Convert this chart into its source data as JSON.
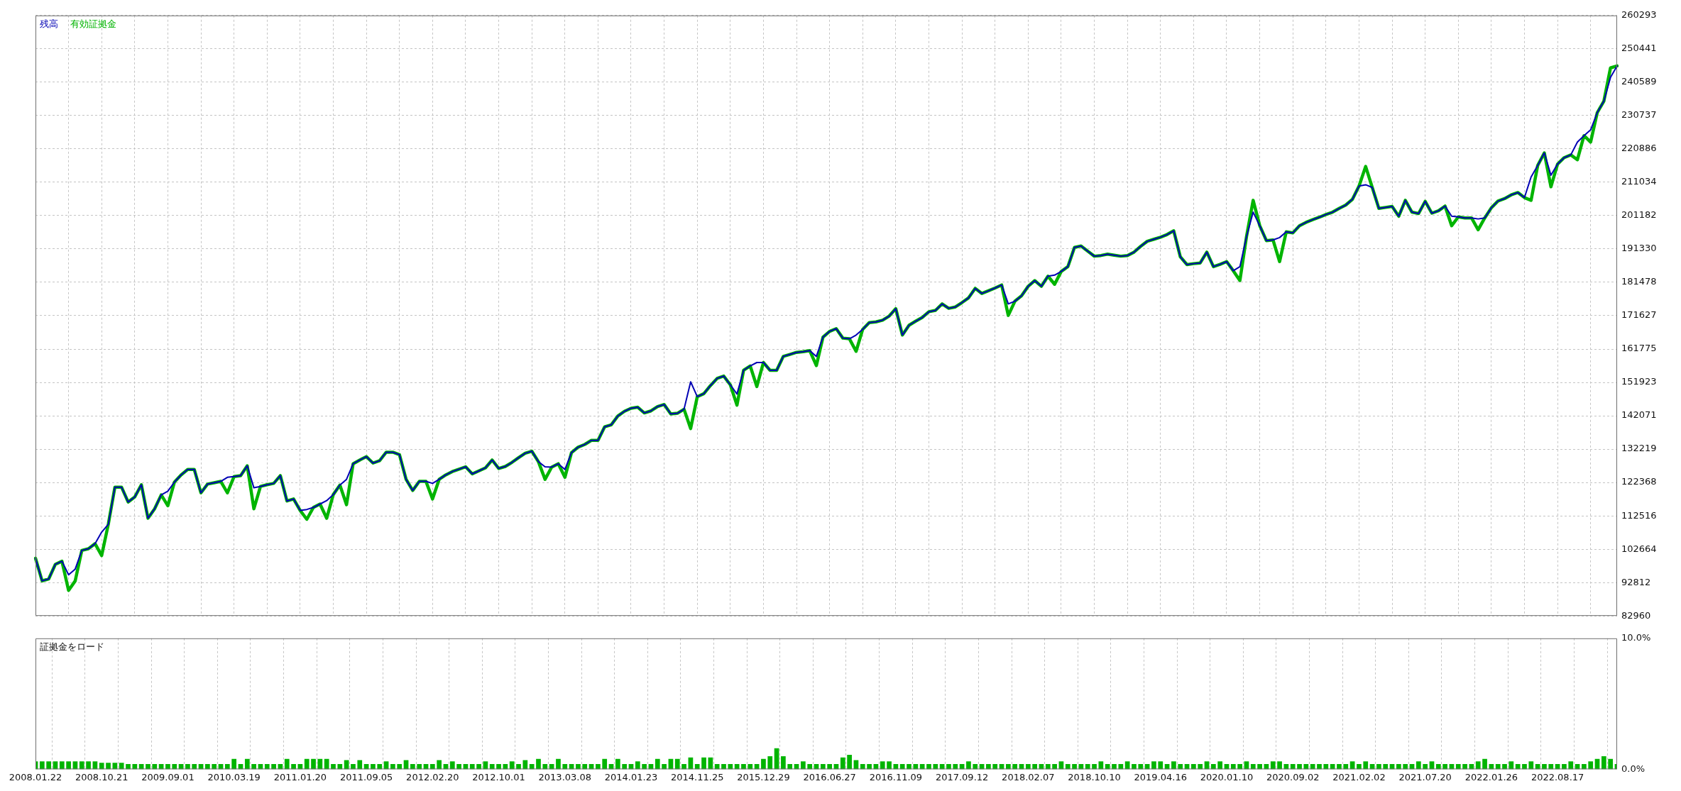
{
  "chart_data": [
    {
      "type": "line",
      "legend": "top left",
      "grid": true,
      "tick_labels": "y",
      "categories": [
        "2008.01.22",
        null,
        null,
        null,
        null,
        null,
        null,
        null,
        null,
        null,
        "2008.10.21",
        null,
        null,
        null,
        null,
        null,
        null,
        null,
        null,
        null,
        "2009.09.01",
        null,
        null,
        null,
        null,
        null,
        null,
        null,
        null,
        null,
        "2010.03.19",
        null,
        null,
        null,
        null,
        null,
        null,
        null,
        null,
        null,
        "2011.01.20",
        null,
        null,
        null,
        null,
        null,
        null,
        null,
        null,
        null,
        "2011.09.05",
        null,
        null,
        null,
        null,
        null,
        null,
        null,
        null,
        null,
        "2012.02.20",
        null,
        null,
        null,
        null,
        null,
        null,
        null,
        null,
        null,
        "2012.10.01",
        null,
        null,
        null,
        null,
        null,
        null,
        null,
        null,
        null,
        "2013.03.08",
        null,
        null,
        null,
        null,
        null,
        null,
        null,
        null,
        null,
        "2014.01.23",
        null,
        null,
        null,
        null,
        null,
        null,
        null,
        null,
        null,
        "2014.11.25",
        null,
        null,
        null,
        null,
        null,
        null,
        null,
        null,
        null,
        "2015.12.29",
        null,
        null,
        null,
        null,
        null,
        null,
        null,
        null,
        null,
        "2016.06.27",
        null,
        null,
        null,
        null,
        null,
        null,
        null,
        null,
        null,
        "2016.11.09",
        null,
        null,
        null,
        null,
        null,
        null,
        null,
        null,
        null,
        "2017.09.12",
        null,
        null,
        null,
        null,
        null,
        null,
        null,
        null,
        null,
        "2018.02.07",
        null,
        null,
        null,
        null,
        null,
        null,
        null,
        null,
        null,
        "2018.10.10",
        null,
        null,
        null,
        null,
        null,
        null,
        null,
        null,
        null,
        "2019.04.16",
        null,
        null,
        null,
        null,
        null,
        null,
        null,
        null,
        null,
        "2020.01.10",
        null,
        null,
        null,
        null,
        null,
        null,
        null,
        null,
        null,
        "2020.09.02",
        null,
        null,
        null,
        null,
        null,
        null,
        null,
        null,
        null,
        "2021.02.02",
        null,
        null,
        null,
        null,
        null,
        null,
        null,
        null,
        null,
        "2021.07.20",
        null,
        null,
        null,
        null,
        null,
        null,
        null,
        null,
        null,
        "2022.01.26",
        null,
        null,
        null,
        null,
        null,
        null,
        null,
        null,
        null,
        "2022.08.17",
        null,
        null,
        null,
        null,
        null,
        null,
        null,
        null,
        null
      ],
      "ylim": [
        82960,
        260293
      ],
      "yticks": [
        82960,
        92812,
        102664,
        112516,
        122368,
        132219,
        142071,
        151923,
        161775,
        171627,
        181478,
        191330,
        201182,
        211034,
        220886,
        230737,
        240589,
        250441,
        260293
      ],
      "series": [
        {
          "name": "残高",
          "color": "#0000b4",
          "values": [
            100000,
            93300,
            93900,
            98200,
            99100,
            95100,
            96800,
            102300,
            102800,
            104300,
            107700,
            110000,
            121000,
            121000,
            116600,
            118100,
            121700,
            111800,
            114600,
            118700,
            119800,
            122500,
            124600,
            126200,
            126200,
            119300,
            121900,
            122300,
            122700,
            123900,
            124100,
            124400,
            127300,
            120800,
            121200,
            121700,
            122100,
            124400,
            116900,
            117500,
            114100,
            114400,
            115000,
            116000,
            117000,
            118800,
            121600,
            123300,
            127900,
            129000,
            130000,
            128100,
            128800,
            131300,
            131300,
            130600,
            123300,
            120000,
            122700,
            122700,
            122100,
            123300,
            124600,
            125600,
            126300,
            127000,
            124900,
            125800,
            126700,
            129000,
            126500,
            127100,
            128300,
            129700,
            131000,
            131600,
            128500,
            127000,
            126900,
            127900,
            126200,
            131200,
            132800,
            133600,
            134800,
            134800,
            138800,
            139400,
            142000,
            143400,
            144300,
            144600,
            142900,
            143500,
            144800,
            145400,
            142600,
            142800,
            144000,
            152100,
            147700,
            148600,
            151000,
            153100,
            153800,
            151200,
            148500,
            155500,
            156800,
            157800,
            157800,
            155500,
            155500,
            159600,
            160200,
            160800,
            161000,
            161300,
            159600,
            165300,
            167000,
            167800,
            165000,
            164800,
            165900,
            167600,
            169600,
            169800,
            170300,
            171500,
            173700,
            165900,
            168800,
            170000,
            171100,
            172800,
            173200,
            175100,
            173800,
            174200,
            175500,
            176900,
            179700,
            178200,
            179000,
            179800,
            180700,
            175100,
            175900,
            177500,
            180300,
            182000,
            180300,
            183300,
            183600,
            184700,
            186100,
            191800,
            192200,
            190700,
            189200,
            189400,
            189800,
            189500,
            189200,
            189400,
            190400,
            192100,
            193600,
            194200,
            194800,
            195600,
            196700,
            189000,
            186700,
            187000,
            187200,
            190400,
            186100,
            186800,
            187600,
            184900,
            186100,
            195000,
            202200,
            198200,
            193800,
            194000,
            194700,
            196400,
            196100,
            198200,
            199200,
            200000,
            200700,
            201500,
            202200,
            203300,
            204300,
            206000,
            209900,
            210300,
            209500,
            203300,
            203600,
            203900,
            201000,
            205700,
            202200,
            201800,
            205400,
            201900,
            202600,
            204000,
            201000,
            200800,
            200500,
            200500,
            200200,
            200500,
            203500,
            205500,
            206200,
            207300,
            208000,
            206500,
            212600,
            216000,
            219700,
            213100,
            216400,
            218300,
            219100,
            222900,
            224800,
            226500,
            231600,
            235000,
            242000,
            245400
          ]
        },
        {
          "name": "有効証拠金",
          "color": "#00b400",
          "values": [
            100000,
            93300,
            93900,
            98200,
            99100,
            90500,
            93300,
            102300,
            102800,
            104300,
            100800,
            110000,
            121000,
            121000,
            116600,
            118100,
            121700,
            111800,
            114600,
            118700,
            115500,
            122500,
            124600,
            126200,
            126200,
            119300,
            121900,
            122300,
            122700,
            119300,
            124100,
            124400,
            127300,
            114600,
            121200,
            121700,
            122100,
            124400,
            116900,
            117500,
            114100,
            111500,
            115000,
            116000,
            111800,
            118800,
            121600,
            115800,
            127900,
            129000,
            130000,
            128100,
            128800,
            131300,
            131300,
            130600,
            123300,
            120000,
            122700,
            122700,
            117500,
            123300,
            124600,
            125600,
            126300,
            127000,
            124900,
            125800,
            126700,
            129000,
            126500,
            127100,
            128300,
            129700,
            131000,
            131600,
            128500,
            123300,
            126900,
            127900,
            123900,
            131200,
            132800,
            133600,
            134800,
            134800,
            138800,
            139400,
            142000,
            143400,
            144300,
            144600,
            142900,
            143500,
            144800,
            145400,
            142600,
            142800,
            144000,
            138300,
            147700,
            148600,
            151000,
            153100,
            153800,
            151200,
            145200,
            155500,
            156800,
            150700,
            157800,
            155500,
            155500,
            159600,
            160200,
            160800,
            161000,
            161300,
            156900,
            165300,
            167000,
            167800,
            165000,
            164800,
            161100,
            167600,
            169600,
            169800,
            170300,
            171500,
            173700,
            165900,
            168800,
            170000,
            171100,
            172800,
            173200,
            175100,
            173800,
            174200,
            175500,
            176900,
            179700,
            178200,
            179000,
            179800,
            180700,
            171700,
            175900,
            177500,
            180300,
            182000,
            180300,
            183300,
            180900,
            184700,
            186100,
            191800,
            192200,
            190700,
            189200,
            189400,
            189800,
            189500,
            189200,
            189400,
            190400,
            192100,
            193600,
            194200,
            194800,
            195600,
            196700,
            189000,
            186700,
            187000,
            187200,
            190400,
            186100,
            186800,
            187600,
            184900,
            182000,
            195000,
            205700,
            198200,
            193800,
            194000,
            187600,
            196400,
            196100,
            198200,
            199200,
            200000,
            200700,
            201500,
            202200,
            203300,
            204300,
            206000,
            209900,
            215700,
            209500,
            203300,
            203600,
            203900,
            201000,
            205700,
            202200,
            201800,
            205400,
            201900,
            202600,
            204000,
            198200,
            200800,
            200500,
            200500,
            197000,
            200500,
            203500,
            205500,
            206200,
            207300,
            208000,
            206500,
            205700,
            216000,
            219700,
            209700,
            216400,
            218300,
            219100,
            217700,
            224800,
            222900,
            231600,
            235000,
            244800,
            245400
          ]
        }
      ]
    },
    {
      "type": "bar",
      "title": "証拠金をロード",
      "grid": "x",
      "categories": [
        "2008.01.22",
        null,
        null,
        null,
        null,
        null,
        null,
        null,
        null,
        null,
        "2008.10.21",
        null,
        null,
        null,
        null,
        null,
        null,
        null,
        null,
        null,
        "2009.09.01",
        null,
        null,
        null,
        null,
        null,
        null,
        null,
        null,
        null,
        "2010.03.19",
        null,
        null,
        null,
        null,
        null,
        null,
        null,
        null,
        null,
        "2011.01.20",
        null,
        null,
        null,
        null,
        null,
        null,
        null,
        null,
        null,
        "2011.09.05",
        null,
        null,
        null,
        null,
        null,
        null,
        null,
        null,
        null,
        "2012.02.20",
        null,
        null,
        null,
        null,
        null,
        null,
        null,
        null,
        null,
        "2012.10.01",
        null,
        null,
        null,
        null,
        null,
        null,
        null,
        null,
        null,
        "2013.03.08",
        null,
        null,
        null,
        null,
        null,
        null,
        null,
        null,
        null,
        "2014.01.23",
        null,
        null,
        null,
        null,
        null,
        null,
        null,
        null,
        null,
        "2014.11.25",
        null,
        null,
        null,
        null,
        null,
        null,
        null,
        null,
        null,
        "2015.12.29",
        null,
        null,
        null,
        null,
        null,
        null,
        null,
        null,
        null,
        "2016.06.27",
        null,
        null,
        null,
        null,
        null,
        null,
        null,
        null,
        null,
        "2016.11.09",
        null,
        null,
        null,
        null,
        null,
        null,
        null,
        null,
        null,
        "2017.09.12",
        null,
        null,
        null,
        null,
        null,
        null,
        null,
        null,
        null,
        "2018.02.07",
        null,
        null,
        null,
        null,
        null,
        null,
        null,
        null,
        null,
        "2018.10.10",
        null,
        null,
        null,
        null,
        null,
        null,
        null,
        null,
        null,
        "2019.04.16",
        null,
        null,
        null,
        null,
        null,
        null,
        null,
        null,
        null,
        "2020.01.10",
        null,
        null,
        null,
        null,
        null,
        null,
        null,
        null,
        null,
        "2020.09.02",
        null,
        null,
        null,
        null,
        null,
        null,
        null,
        null,
        null,
        "2021.02.02",
        null,
        null,
        null,
        null,
        null,
        null,
        null,
        null,
        null,
        "2021.07.20",
        null,
        null,
        null,
        null,
        null,
        null,
        null,
        null,
        null,
        "2022.01.26",
        null,
        null,
        null,
        null,
        null,
        null,
        null,
        null,
        null,
        "2022.08.17",
        null,
        null,
        null,
        null,
        null,
        null,
        null,
        null,
        null
      ],
      "ylim": [
        0,
        10
      ],
      "yticks": [
        {
          "value": 0,
          "label": "0.0%"
        },
        {
          "value": 10,
          "label": "10.0%"
        }
      ],
      "series": [
        {
          "color": "#00b400",
          "values": [
            0.6,
            0.6,
            0.6,
            0.6,
            0.6,
            0.6,
            0.6,
            0.6,
            0.6,
            0.6,
            0.5,
            0.5,
            0.5,
            0.5,
            0.4,
            0.4,
            0.4,
            0.4,
            0.4,
            0.4,
            0.4,
            0.4,
            0.4,
            0.4,
            0.4,
            0.4,
            0.4,
            0.4,
            0.4,
            0.4,
            0.8,
            0.4,
            0.8,
            0.4,
            0.4,
            0.4,
            0.4,
            0.4,
            0.8,
            0.4,
            0.4,
            0.8,
            0.8,
            0.8,
            0.8,
            0.4,
            0.4,
            0.7,
            0.4,
            0.7,
            0.4,
            0.4,
            0.4,
            0.6,
            0.4,
            0.4,
            0.7,
            0.4,
            0.4,
            0.4,
            0.4,
            0.7,
            0.4,
            0.6,
            0.4,
            0.4,
            0.4,
            0.4,
            0.6,
            0.4,
            0.4,
            0.4,
            0.6,
            0.4,
            0.7,
            0.4,
            0.8,
            0.4,
            0.4,
            0.8,
            0.4,
            0.4,
            0.4,
            0.4,
            0.4,
            0.4,
            0.8,
            0.4,
            0.8,
            0.4,
            0.4,
            0.6,
            0.4,
            0.4,
            0.8,
            0.4,
            0.8,
            0.8,
            0.4,
            0.9,
            0.4,
            0.9,
            0.9,
            0.4,
            0.4,
            0.4,
            0.4,
            0.4,
            0.4,
            0.4,
            0.8,
            1.0,
            1.6,
            1.0,
            0.4,
            0.4,
            0.6,
            0.4,
            0.4,
            0.4,
            0.4,
            0.4,
            0.9,
            1.1,
            0.7,
            0.4,
            0.4,
            0.4,
            0.6,
            0.6,
            0.4,
            0.4,
            0.4,
            0.4,
            0.4,
            0.4,
            0.4,
            0.4,
            0.4,
            0.4,
            0.4,
            0.6,
            0.4,
            0.4,
            0.4,
            0.4,
            0.4,
            0.4,
            0.4,
            0.4,
            0.4,
            0.4,
            0.4,
            0.4,
            0.4,
            0.6,
            0.4,
            0.4,
            0.4,
            0.4,
            0.4,
            0.6,
            0.4,
            0.4,
            0.4,
            0.6,
            0.4,
            0.4,
            0.4,
            0.6,
            0.6,
            0.4,
            0.6,
            0.4,
            0.4,
            0.4,
            0.4,
            0.6,
            0.4,
            0.6,
            0.4,
            0.4,
            0.4,
            0.6,
            0.4,
            0.4,
            0.4,
            0.6,
            0.6,
            0.4,
            0.4,
            0.4,
            0.4,
            0.4,
            0.4,
            0.4,
            0.4,
            0.4,
            0.4,
            0.6,
            0.4,
            0.6,
            0.4,
            0.4,
            0.4,
            0.4,
            0.4,
            0.4,
            0.4,
            0.6,
            0.4,
            0.6,
            0.4,
            0.4,
            0.4,
            0.4,
            0.4,
            0.4,
            0.6,
            0.8,
            0.4,
            0.4,
            0.4,
            0.6,
            0.4,
            0.4,
            0.6,
            0.4,
            0.4,
            0.4,
            0.4,
            0.4,
            0.6,
            0.4,
            0.4,
            0.6,
            0.8,
            1.0,
            0.8,
            0.4
          ]
        }
      ]
    }
  ]
}
